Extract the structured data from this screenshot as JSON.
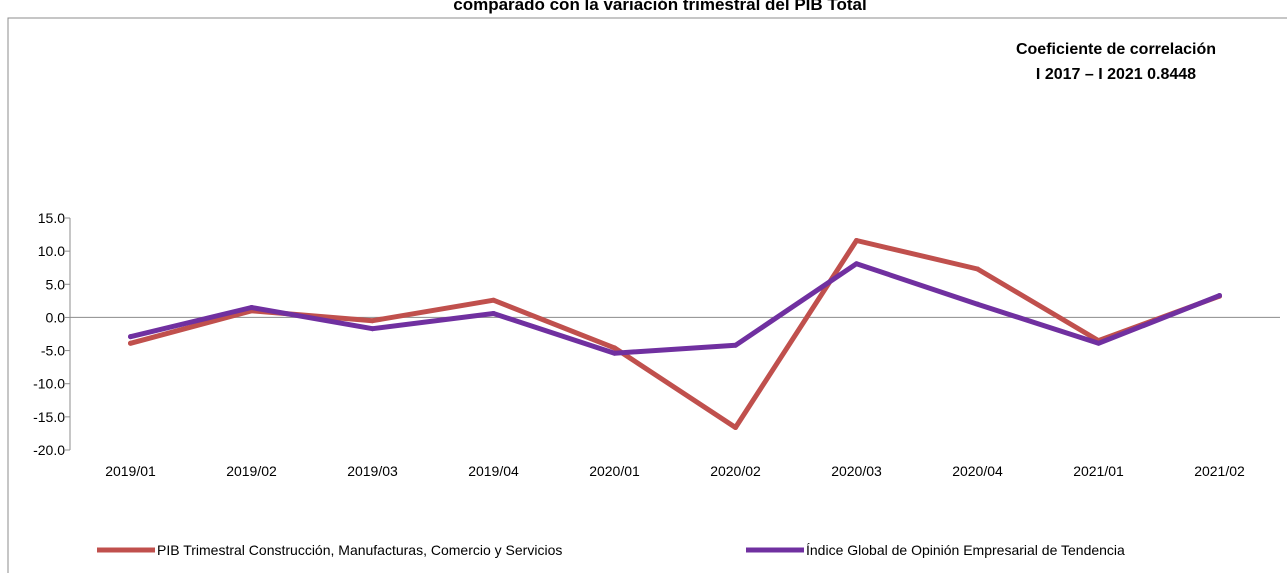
{
  "chart_data": {
    "type": "line",
    "title": "comparado con la variación trimestral del PIB Total",
    "annotation": [
      "Coeficiente de correlación",
      "I 2017 – I 2021 0.8448"
    ],
    "categories": [
      "2019/01",
      "2019/02",
      "2019/03",
      "2019/04",
      "2020/01",
      "2020/02",
      "2020/03",
      "2020/04",
      "2021/01",
      "2021/02"
    ],
    "ylim": [
      -20,
      15
    ],
    "yticks": [
      15,
      10,
      5,
      0,
      -5,
      -10,
      -15,
      -20
    ],
    "ytick_labels": [
      "15.0",
      "10.0",
      "5.0",
      "0.0",
      "-5.0",
      "-10.0",
      "-15.0",
      "-20.0"
    ],
    "grid": false,
    "legend_position": "bottom",
    "series": [
      {
        "name": "PIB Trimestral Construcción, Manufacturas, Comercio y Servicios",
        "color": "#c0504d",
        "values": [
          -3.9,
          1.0,
          -0.5,
          2.6,
          -4.6,
          -16.6,
          11.6,
          7.3,
          -3.5,
          3.2
        ]
      },
      {
        "name": "Índice Global de Opinión Empresarial de Tendencia",
        "color": "#7030a0",
        "values": [
          -2.9,
          1.5,
          -1.7,
          0.6,
          -5.4,
          -4.2,
          8.1,
          2.0,
          -3.9,
          3.3
        ]
      }
    ]
  }
}
